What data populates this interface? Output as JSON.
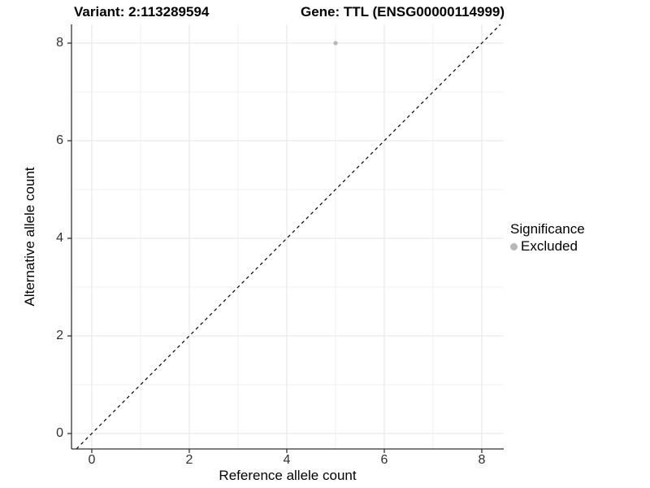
{
  "titles": {
    "variant": "Variant: 2:113289594",
    "gene": "Gene: TTL (ENSG00000114999)"
  },
  "axes": {
    "x_label": "Reference allele count",
    "y_label": "Alternative allele count"
  },
  "legend": {
    "title": "Significance",
    "items": [
      {
        "label": "Excluded",
        "color": "#b7b7b7",
        "marker": "dot-icon"
      }
    ]
  },
  "chart_data": {
    "type": "scatter",
    "title": "Variant: 2:113289594 / Gene: TTL (ENSG00000114999)",
    "xlabel": "Reference allele count",
    "ylabel": "Alternative allele count",
    "xlim": [
      -0.45,
      8.45
    ],
    "ylim": [
      -0.42,
      8.42
    ],
    "x_ticks": [
      0,
      2,
      4,
      6,
      8
    ],
    "y_ticks": [
      0,
      2,
      4,
      6,
      8
    ],
    "x_minor_ticks": [
      1,
      3,
      5,
      7
    ],
    "y_minor_ticks": [
      1,
      3,
      5,
      7
    ],
    "grid": "major+minor",
    "legend_position": "right",
    "legend_title": "Significance",
    "series": [
      {
        "name": "Excluded",
        "color": "#b7b7b7",
        "points": [
          {
            "x": 5,
            "y": 8
          }
        ]
      }
    ],
    "reference_line": {
      "kind": "identity y=x",
      "style": "dashed",
      "color": "#000000"
    },
    "style_colors": {
      "major_grid": "#e4e4e4",
      "minor_grid": "#f1f1f1",
      "axis": "#333333",
      "tick_label": "#303030"
    }
  }
}
